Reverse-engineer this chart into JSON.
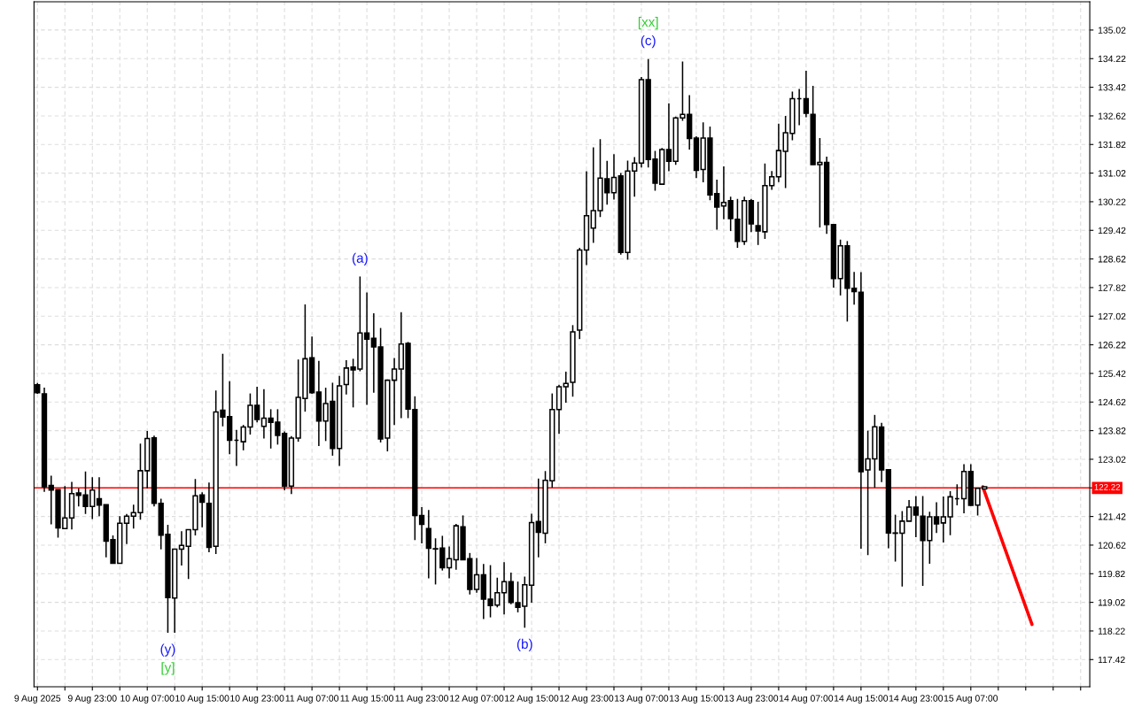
{
  "chart_data": {
    "type": "candlestick",
    "x": [
      "2025-08-09T15:00",
      "2025-08-09T16:00",
      "2025-08-09T17:00",
      "2025-08-09T18:00",
      "2025-08-09T19:00",
      "2025-08-09T20:00",
      "2025-08-09T21:00",
      "2025-08-09T22:00",
      "2025-08-09T23:00",
      "2025-08-10T00:00",
      "2025-08-10T01:00",
      "2025-08-10T02:00",
      "2025-08-10T03:00",
      "2025-08-10T04:00",
      "2025-08-10T05:00",
      "2025-08-10T06:00",
      "2025-08-10T07:00",
      "2025-08-10T08:00",
      "2025-08-10T09:00",
      "2025-08-10T10:00",
      "2025-08-10T11:00",
      "2025-08-10T12:00",
      "2025-08-10T13:00",
      "2025-08-10T14:00",
      "2025-08-10T15:00",
      "2025-08-10T16:00",
      "2025-08-10T17:00",
      "2025-08-10T18:00",
      "2025-08-10T19:00",
      "2025-08-10T20:00",
      "2025-08-10T21:00",
      "2025-08-10T22:00",
      "2025-08-10T23:00",
      "2025-08-11T00:00",
      "2025-08-11T01:00",
      "2025-08-11T02:00",
      "2025-08-11T03:00",
      "2025-08-11T04:00",
      "2025-08-11T05:00",
      "2025-08-11T06:00",
      "2025-08-11T07:00",
      "2025-08-11T08:00",
      "2025-08-11T09:00",
      "2025-08-11T10:00",
      "2025-08-11T11:00",
      "2025-08-11T12:00",
      "2025-08-11T13:00",
      "2025-08-11T14:00",
      "2025-08-11T15:00",
      "2025-08-11T16:00",
      "2025-08-11T17:00",
      "2025-08-11T18:00",
      "2025-08-11T19:00",
      "2025-08-11T20:00",
      "2025-08-11T21:00",
      "2025-08-11T22:00",
      "2025-08-11T23:00",
      "2025-08-12T00:00",
      "2025-08-12T01:00",
      "2025-08-12T02:00",
      "2025-08-12T03:00",
      "2025-08-12T04:00",
      "2025-08-12T05:00",
      "2025-08-12T06:00",
      "2025-08-12T07:00",
      "2025-08-12T08:00",
      "2025-08-12T09:00",
      "2025-08-12T10:00",
      "2025-08-12T11:00",
      "2025-08-12T12:00",
      "2025-08-12T13:00",
      "2025-08-12T14:00",
      "2025-08-12T15:00",
      "2025-08-12T16:00",
      "2025-08-12T17:00",
      "2025-08-12T18:00",
      "2025-08-12T19:00",
      "2025-08-12T20:00",
      "2025-08-12T21:00",
      "2025-08-12T22:00",
      "2025-08-12T23:00",
      "2025-08-13T00:00",
      "2025-08-13T01:00",
      "2025-08-13T02:00",
      "2025-08-13T03:00",
      "2025-08-13T04:00",
      "2025-08-13T05:00",
      "2025-08-13T06:00",
      "2025-08-13T07:00",
      "2025-08-13T08:00",
      "2025-08-13T09:00",
      "2025-08-13T10:00",
      "2025-08-13T11:00",
      "2025-08-13T12:00",
      "2025-08-13T13:00",
      "2025-08-13T14:00",
      "2025-08-13T15:00",
      "2025-08-13T16:00",
      "2025-08-13T17:00",
      "2025-08-13T18:00",
      "2025-08-13T19:00",
      "2025-08-13T20:00",
      "2025-08-13T21:00",
      "2025-08-13T22:00",
      "2025-08-13T23:00",
      "2025-08-14T00:00",
      "2025-08-14T01:00",
      "2025-08-14T02:00",
      "2025-08-14T03:00",
      "2025-08-14T04:00",
      "2025-08-14T05:00",
      "2025-08-14T06:00",
      "2025-08-14T07:00",
      "2025-08-14T08:00",
      "2025-08-14T09:00",
      "2025-08-14T10:00",
      "2025-08-14T11:00",
      "2025-08-14T12:00",
      "2025-08-14T13:00",
      "2025-08-14T14:00",
      "2025-08-14T15:00",
      "2025-08-14T16:00",
      "2025-08-14T17:00",
      "2025-08-14T18:00",
      "2025-08-14T19:00",
      "2025-08-14T20:00",
      "2025-08-14T21:00",
      "2025-08-14T22:00",
      "2025-08-14T23:00",
      "2025-08-15T00:00",
      "2025-08-15T01:00",
      "2025-08-15T02:00",
      "2025-08-15T03:00",
      "2025-08-15T04:00",
      "2025-08-15T05:00",
      "2025-08-15T06:00",
      "2025-08-15T07:00",
      "2025-08-15T08:00",
      "2025-08-15T09:00"
    ],
    "ohlc": [
      [
        125.1,
        125.15,
        124.85,
        124.88
      ],
      [
        124.85,
        125.02,
        122.11,
        122.25
      ],
      [
        122.29,
        122.56,
        121.2,
        122.16
      ],
      [
        122.17,
        122.17,
        120.83,
        121.1
      ],
      [
        121.08,
        122.27,
        121.08,
        121.38
      ],
      [
        121.38,
        122.39,
        121.06,
        122.06
      ],
      [
        122.08,
        122.2,
        121.7,
        122.01
      ],
      [
        122.02,
        122.68,
        121.49,
        121.7
      ],
      [
        121.7,
        122.52,
        121.35,
        122.16
      ],
      [
        121.92,
        122.52,
        121.43,
        121.74
      ],
      [
        121.75,
        121.75,
        120.28,
        120.73
      ],
      [
        120.77,
        120.89,
        120.1,
        120.11
      ],
      [
        120.11,
        121.43,
        120.1,
        121.23
      ],
      [
        121.23,
        121.49,
        120.65,
        121.43
      ],
      [
        121.43,
        121.75,
        121.08,
        121.53
      ],
      [
        121.53,
        123.46,
        121.33,
        122.7
      ],
      [
        122.7,
        123.81,
        122.2,
        123.6
      ],
      [
        123.62,
        123.68,
        121.7,
        121.79
      ],
      [
        121.79,
        121.92,
        120.5,
        120.9
      ],
      [
        120.92,
        121.19,
        118.17,
        119.15
      ],
      [
        119.14,
        120.51,
        118.17,
        120.51
      ],
      [
        120.51,
        121.01,
        120.05,
        120.61
      ],
      [
        120.59,
        121.05,
        119.67,
        121.05
      ],
      [
        121.05,
        122.47,
        120.89,
        122.0
      ],
      [
        122.02,
        122.1,
        121.12,
        121.82
      ],
      [
        121.79,
        122.37,
        120.42,
        120.56
      ],
      [
        120.59,
        124.94,
        120.37,
        124.34
      ],
      [
        124.39,
        125.97,
        123.94,
        124.2
      ],
      [
        124.21,
        125.2,
        123.16,
        123.55
      ],
      [
        123.55,
        123.84,
        122.83,
        123.55
      ],
      [
        123.51,
        123.98,
        123.27,
        123.92
      ],
      [
        123.92,
        124.86,
        123.71,
        124.53
      ],
      [
        124.53,
        125.05,
        124.05,
        124.13
      ],
      [
        123.94,
        124.98,
        123.6,
        124.17
      ],
      [
        124.17,
        124.42,
        123.32,
        124.05
      ],
      [
        124.06,
        124.42,
        123.43,
        123.69
      ],
      [
        123.74,
        123.8,
        122.15,
        122.27
      ],
      [
        122.27,
        123.67,
        122.05,
        123.61
      ],
      [
        123.61,
        125.81,
        123.51,
        124.75
      ],
      [
        124.72,
        127.35,
        124.35,
        125.83
      ],
      [
        125.86,
        126.45,
        124.85,
        124.88
      ],
      [
        124.9,
        125.77,
        123.39,
        124.09
      ],
      [
        124.09,
        125.02,
        123.53,
        124.58
      ],
      [
        124.64,
        125.16,
        123.12,
        123.32
      ],
      [
        123.32,
        125.35,
        122.83,
        125.07
      ],
      [
        125.11,
        125.79,
        124.83,
        125.57
      ],
      [
        125.6,
        125.83,
        124.47,
        125.52
      ],
      [
        125.54,
        128.13,
        125.48,
        126.55
      ],
      [
        126.55,
        127.68,
        124.54,
        126.38
      ],
      [
        126.4,
        127.1,
        124.88,
        126.16
      ],
      [
        126.16,
        126.69,
        123.49,
        123.59
      ],
      [
        123.61,
        125.25,
        123.24,
        125.23
      ],
      [
        125.23,
        125.85,
        123.98,
        125.54
      ],
      [
        125.54,
        127.13,
        124.17,
        126.24
      ],
      [
        126.26,
        126.3,
        124.17,
        124.42
      ],
      [
        124.41,
        124.78,
        120.76,
        121.45
      ],
      [
        121.45,
        121.68,
        120.67,
        121.2
      ],
      [
        121.08,
        121.6,
        119.69,
        120.53
      ],
      [
        120.52,
        120.81,
        119.52,
        120.51
      ],
      [
        120.54,
        120.88,
        119.91,
        119.99
      ],
      [
        119.99,
        120.58,
        119.69,
        120.24
      ],
      [
        120.21,
        121.21,
        119.93,
        121.16
      ],
      [
        121.13,
        121.45,
        120.2,
        120.21
      ],
      [
        120.24,
        120.4,
        119.24,
        119.38
      ],
      [
        119.38,
        120.26,
        119.29,
        119.79
      ],
      [
        119.79,
        120.09,
        118.55,
        119.11
      ],
      [
        119.11,
        120.06,
        118.6,
        118.93
      ],
      [
        118.94,
        119.71,
        118.88,
        119.29
      ],
      [
        119.29,
        120.14,
        118.68,
        119.6
      ],
      [
        119.6,
        119.85,
        118.97,
        119.02
      ],
      [
        119.01,
        119.6,
        118.74,
        118.88
      ],
      [
        118.91,
        119.74,
        118.31,
        119.51
      ],
      [
        119.5,
        121.5,
        119.01,
        121.25
      ],
      [
        121.28,
        122.48,
        120.28,
        120.98
      ],
      [
        120.95,
        122.69,
        120.67,
        122.43
      ],
      [
        122.42,
        124.86,
        122.23,
        124.41
      ],
      [
        124.41,
        125.1,
        123.73,
        125.05
      ],
      [
        125.05,
        125.47,
        124.6,
        125.14
      ],
      [
        125.17,
        126.77,
        124.77,
        126.58
      ],
      [
        126.63,
        128.93,
        126.38,
        128.87
      ],
      [
        128.87,
        131.07,
        128.45,
        129.83
      ],
      [
        129.48,
        131.74,
        129.07,
        129.97
      ],
      [
        129.97,
        131.97,
        129.79,
        130.88
      ],
      [
        130.86,
        131.36,
        130.14,
        130.47
      ],
      [
        130.47,
        131.55,
        130.28,
        130.9
      ],
      [
        130.94,
        131.02,
        128.74,
        128.8
      ],
      [
        128.8,
        131.37,
        128.6,
        131.08
      ],
      [
        131.08,
        131.47,
        130.36,
        131.3
      ],
      [
        131.3,
        133.71,
        131.18,
        133.63
      ],
      [
        133.63,
        134.21,
        131.18,
        131.4
      ],
      [
        131.41,
        131.64,
        130.53,
        130.74
      ],
      [
        130.71,
        131.72,
        130.71,
        131.68
      ],
      [
        131.68,
        132.97,
        131.07,
        131.35
      ],
      [
        131.35,
        132.6,
        131.25,
        132.56
      ],
      [
        132.56,
        134.14,
        132.48,
        132.66
      ],
      [
        132.66,
        133.2,
        131.68,
        131.99
      ],
      [
        132.0,
        132.05,
        130.88,
        131.1
      ],
      [
        131.12,
        132.44,
        130.76,
        132.0
      ],
      [
        132.0,
        132.32,
        130.26,
        130.41
      ],
      [
        130.45,
        130.84,
        129.44,
        130.07
      ],
      [
        130.1,
        131.21,
        129.73,
        130.2
      ],
      [
        130.25,
        130.36,
        129.4,
        129.75
      ],
      [
        129.73,
        130.3,
        128.93,
        129.11
      ],
      [
        129.11,
        130.36,
        129.01,
        130.25
      ],
      [
        130.25,
        130.3,
        129.37,
        129.6
      ],
      [
        129.55,
        130.22,
        129.01,
        129.4
      ],
      [
        129.38,
        131.29,
        129.18,
        130.67
      ],
      [
        130.67,
        131.08,
        130.55,
        130.92
      ],
      [
        130.92,
        132.4,
        130.77,
        131.65
      ],
      [
        131.63,
        132.62,
        130.6,
        132.15
      ],
      [
        132.13,
        133.3,
        131.94,
        133.1
      ],
      [
        133.1,
        133.37,
        132.36,
        133.1
      ],
      [
        133.1,
        133.88,
        132.58,
        132.69
      ],
      [
        132.66,
        133.46,
        131.25,
        131.26
      ],
      [
        131.26,
        132.0,
        129.5,
        131.32
      ],
      [
        131.32,
        131.48,
        129.32,
        129.58
      ],
      [
        129.58,
        129.6,
        127.82,
        128.07
      ],
      [
        128.07,
        129.16,
        127.6,
        128.99
      ],
      [
        128.99,
        129.12,
        126.87,
        127.8
      ],
      [
        127.8,
        128.26,
        127.34,
        127.71
      ],
      [
        127.69,
        128.25,
        120.52,
        122.67
      ],
      [
        122.72,
        123.82,
        120.34,
        123.03
      ],
      [
        123.03,
        124.26,
        122.23,
        123.93
      ],
      [
        123.92,
        124.04,
        122.38,
        122.72
      ],
      [
        122.73,
        122.73,
        120.53,
        120.96
      ],
      [
        120.96,
        121.47,
        120.16,
        120.95
      ],
      [
        120.95,
        121.57,
        119.46,
        121.29
      ],
      [
        121.29,
        121.88,
        121.29,
        121.68
      ],
      [
        121.68,
        121.99,
        120.84,
        121.46
      ],
      [
        121.43,
        121.99,
        119.48,
        120.75
      ],
      [
        120.75,
        121.55,
        120.1,
        121.41
      ],
      [
        121.41,
        121.82,
        120.96,
        121.21
      ],
      [
        121.24,
        121.98,
        120.69,
        121.41
      ],
      [
        121.41,
        122.13,
        120.9,
        121.97
      ],
      [
        121.92,
        122.32,
        121.73,
        121.92
      ],
      [
        121.92,
        122.88,
        121.51,
        122.68
      ],
      [
        122.68,
        122.88,
        121.72,
        121.73
      ],
      [
        121.74,
        122.21,
        121.45,
        122.21
      ],
      [
        122.19,
        122.25,
        122.19,
        122.25
      ]
    ],
    "series": [
      {
        "type": "line",
        "color": "#ff0000",
        "x": [
          "2025-08-15T08:45",
          "2025-08-15T15:55"
        ],
        "values": [
          122.25,
          118.4
        ]
      }
    ],
    "xlim": [
      "2025-08-09T14:30",
      "2025-08-16T00:20"
    ],
    "xticks": [
      {
        "value": "2025-08-09T15:00",
        "label": "9 Aug 2025"
      },
      {
        "value": "2025-08-09T19:00",
        "label": null
      },
      {
        "value": "2025-08-09T23:00",
        "label": "9 Aug 23:00"
      },
      {
        "value": "2025-08-10T03:00",
        "label": null
      },
      {
        "value": "2025-08-10T07:00",
        "label": "10 Aug 07:00"
      },
      {
        "value": "2025-08-10T11:00",
        "label": null
      },
      {
        "value": "2025-08-10T15:00",
        "label": "10 Aug 15:00"
      },
      {
        "value": "2025-08-10T19:00",
        "label": null
      },
      {
        "value": "2025-08-10T23:00",
        "label": "10 Aug 23:00"
      },
      {
        "value": "2025-08-11T03:00",
        "label": null
      },
      {
        "value": "2025-08-11T07:00",
        "label": "11 Aug 07:00"
      },
      {
        "value": "2025-08-11T11:00",
        "label": null
      },
      {
        "value": "2025-08-11T15:00",
        "label": "11 Aug 15:00"
      },
      {
        "value": "2025-08-11T19:00",
        "label": null
      },
      {
        "value": "2025-08-11T23:00",
        "label": "11 Aug 23:00"
      },
      {
        "value": "2025-08-12T03:00",
        "label": null
      },
      {
        "value": "2025-08-12T07:00",
        "label": "12 Aug 07:00"
      },
      {
        "value": "2025-08-12T11:00",
        "label": null
      },
      {
        "value": "2025-08-12T15:00",
        "label": "12 Aug 15:00"
      },
      {
        "value": "2025-08-12T19:00",
        "label": null
      },
      {
        "value": "2025-08-12T23:00",
        "label": "12 Aug 23:00"
      },
      {
        "value": "2025-08-13T03:00",
        "label": null
      },
      {
        "value": "2025-08-13T07:00",
        "label": "13 Aug 07:00"
      },
      {
        "value": "2025-08-13T11:00",
        "label": null
      },
      {
        "value": "2025-08-13T15:00",
        "label": "13 Aug 15:00"
      },
      {
        "value": "2025-08-13T19:00",
        "label": null
      },
      {
        "value": "2025-08-13T23:00",
        "label": "13 Aug 23:00"
      },
      {
        "value": "2025-08-14T03:00",
        "label": null
      },
      {
        "value": "2025-08-14T07:00",
        "label": "14 Aug 07:00"
      },
      {
        "value": "2025-08-14T11:00",
        "label": null
      },
      {
        "value": "2025-08-14T15:00",
        "label": "14 Aug 15:00"
      },
      {
        "value": "2025-08-14T19:00",
        "label": null
      },
      {
        "value": "2025-08-14T23:00",
        "label": "14 Aug 23:00"
      },
      {
        "value": "2025-08-15T03:00",
        "label": null
      },
      {
        "value": "2025-08-15T07:00",
        "label": "15 Aug 07:00"
      },
      {
        "value": "2025-08-15T11:00",
        "label": null
      },
      {
        "value": "2025-08-15T15:00",
        "label": null
      },
      {
        "value": "2025-08-15T19:00",
        "label": null
      },
      {
        "value": "2025-08-15T23:00",
        "label": null
      }
    ],
    "ylim": [
      116.66,
      135.81
    ],
    "yticks": [
      117.42,
      118.22,
      119.02,
      119.82,
      120.62,
      121.42,
      {
        "value": 122.22,
        "label": null
      },
      123.02,
      123.82,
      124.62,
      125.42,
      126.22,
      127.02,
      127.82,
      128.62,
      129.42,
      130.22,
      131.02,
      131.82,
      132.62,
      133.42,
      134.22,
      135.02
    ],
    "ref_lines": [
      {
        "axis": "y",
        "value": 122.22,
        "label": "122.22",
        "color": "#ff0000"
      }
    ],
    "annotations": [
      {
        "text": "(a)",
        "x": "2025-08-11T14:00",
        "y": 128.13
      },
      {
        "text": "(c)",
        "x": "2025-08-13T08:00",
        "y": 134.21
      },
      {
        "text": "[xx]",
        "x": "2025-08-13T08:00",
        "y": 134.21
      },
      {
        "text": "(y)",
        "x": "2025-08-10T10:00",
        "y": 118.17
      },
      {
        "text": "[y]",
        "x": "2025-08-10T10:00",
        "y": 118.17
      },
      {
        "text": "(b)",
        "x": "2025-08-12T14:00",
        "y": 118.31
      }
    ],
    "grid": true
  }
}
